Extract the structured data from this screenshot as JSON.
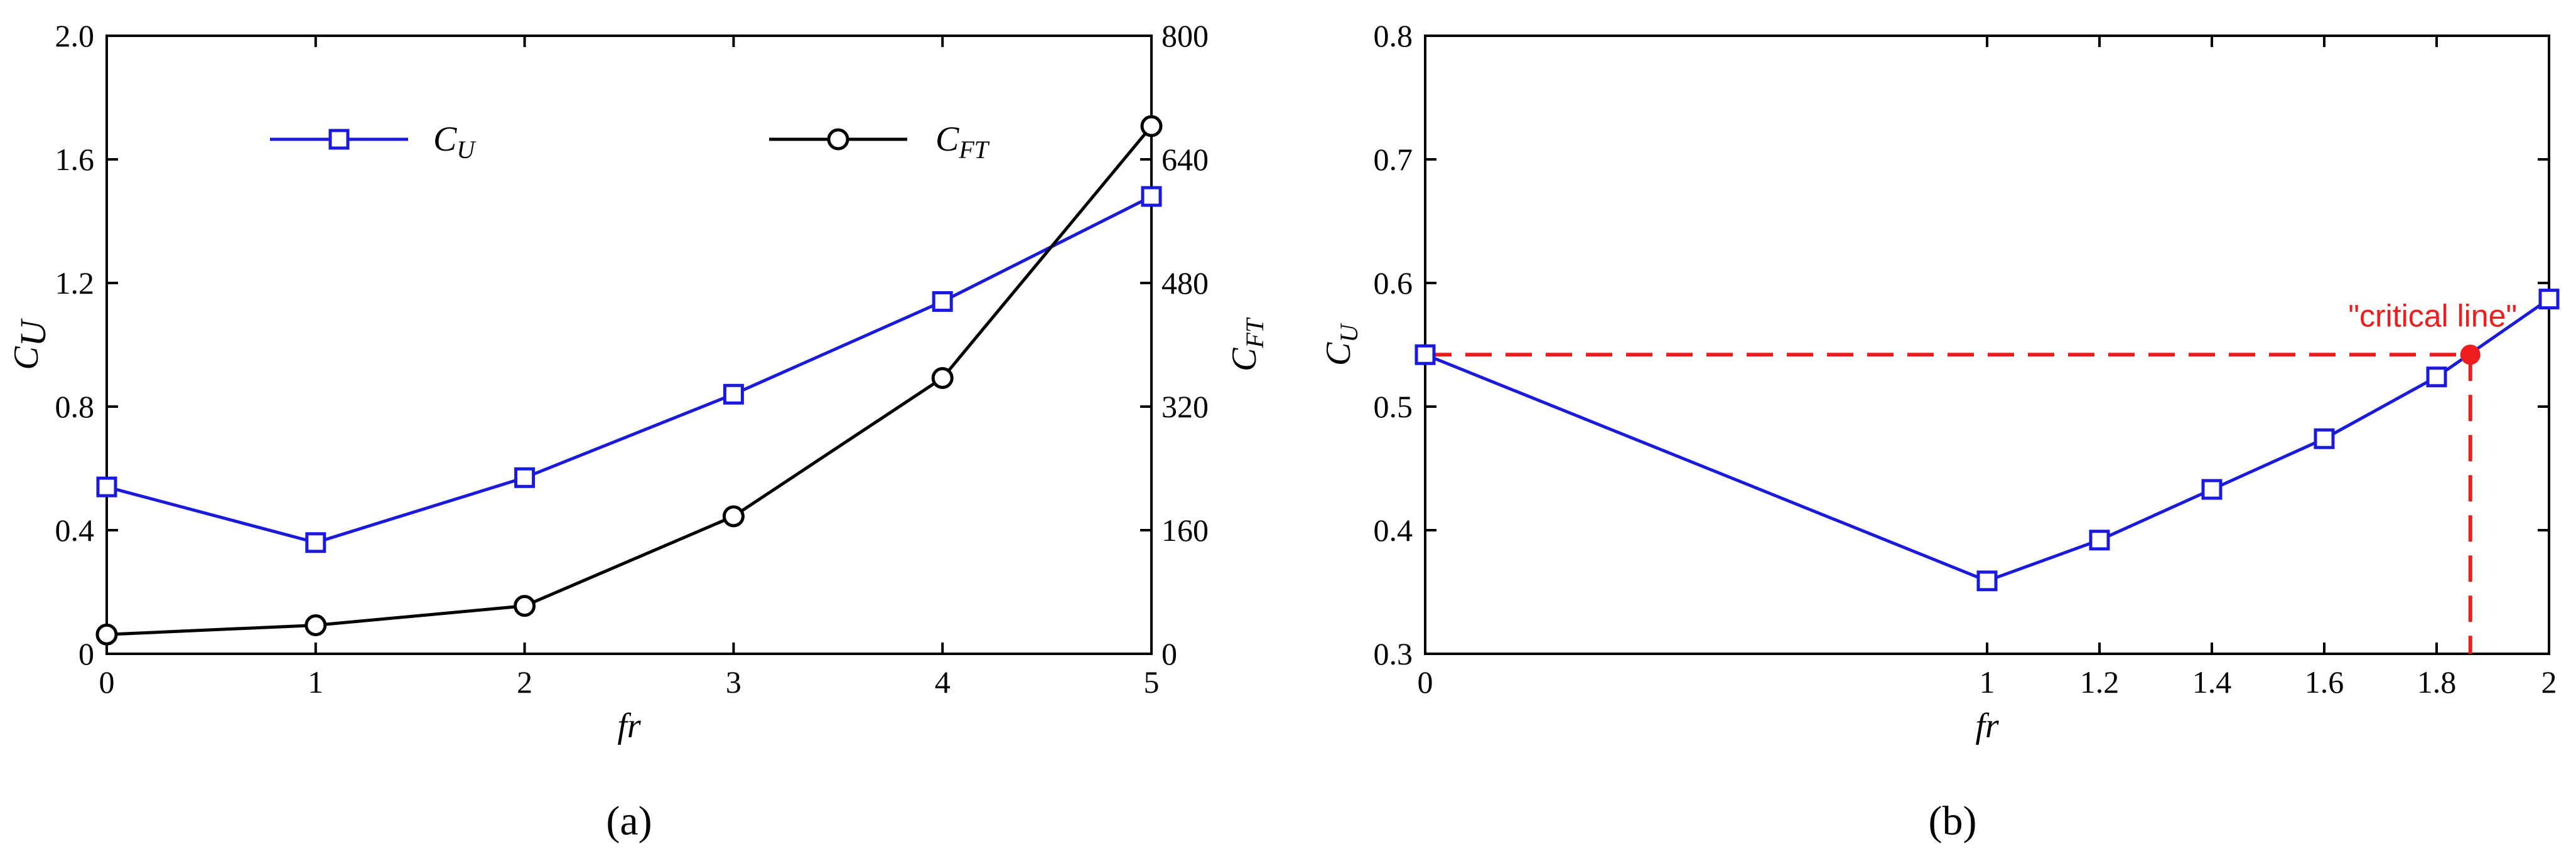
{
  "chart_data": [
    {
      "type": "line",
      "caption": "(a)",
      "xlabel": "fr",
      "ylabel": {
        "main": "C",
        "sub": "U"
      },
      "y2label": {
        "main": "C",
        "sub": "FT"
      },
      "xlim": [
        0,
        5
      ],
      "ylim": [
        0,
        2.0
      ],
      "y2lim": [
        0,
        800
      ],
      "xticks": [
        0,
        1,
        2,
        3,
        4,
        5
      ],
      "yticks": [
        "0",
        "0.4",
        "0.8",
        "1.2",
        "1.6",
        "2.0"
      ],
      "y2ticks": [
        "0",
        "160",
        "320",
        "480",
        "640",
        "800"
      ],
      "legend_position": "top",
      "series": [
        {
          "name": {
            "main": "C",
            "sub": "U"
          },
          "axis": "left",
          "marker": "square",
          "color": "#1a1adc",
          "x": [
            0,
            1,
            2,
            3,
            4,
            5
          ],
          "y": [
            0.54,
            0.36,
            0.57,
            0.84,
            1.14,
            1.48
          ]
        },
        {
          "name": {
            "main": "C",
            "sub": "FT"
          },
          "axis": "right",
          "marker": "circle",
          "color": "#000000",
          "x": [
            0,
            1,
            2,
            3,
            4,
            5
          ],
          "y": [
            25,
            37,
            62,
            178,
            357,
            683
          ]
        }
      ]
    },
    {
      "type": "line",
      "caption": "(b)",
      "xlabel": "fr",
      "ylabel": {
        "main": "C",
        "sub": "U"
      },
      "xlim": [
        0,
        2
      ],
      "ylim": [
        0.3,
        0.8
      ],
      "xticks": [
        "0",
        "1",
        "1.2",
        "1.4",
        "1.6",
        "1.8",
        "2"
      ],
      "yticks": [
        "0.3",
        "0.4",
        "0.5",
        "0.6",
        "0.7",
        "0.8"
      ],
      "series": [
        {
          "marker": "square",
          "color": "#1a1adc",
          "x": [
            0,
            1,
            1.2,
            1.4,
            1.6,
            1.8,
            2
          ],
          "y": [
            0.542,
            0.359,
            0.392,
            0.433,
            0.474,
            0.524,
            0.587
          ]
        }
      ],
      "annotation": {
        "text": "\"critical line\"",
        "color": "#ee1c1c",
        "point": {
          "x": 1.86,
          "y": 0.542
        }
      }
    }
  ]
}
